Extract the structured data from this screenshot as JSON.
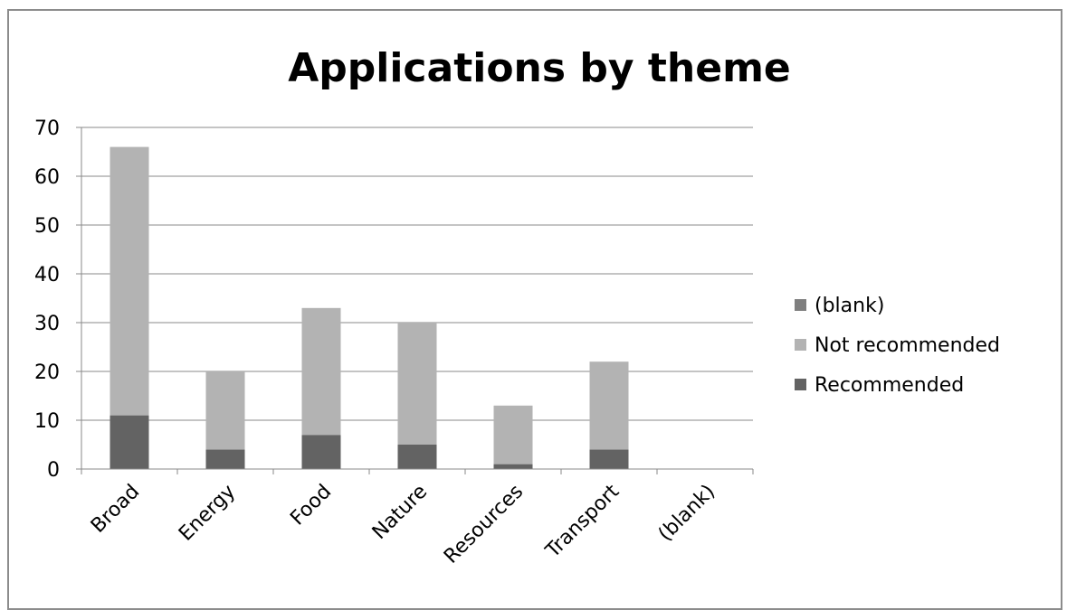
{
  "chart_data": {
    "type": "bar",
    "stacked": true,
    "title": "Applications by theme",
    "categories": [
      "Broad",
      "Energy",
      "Food",
      "Nature",
      "Resources",
      "Transport",
      "(blank)"
    ],
    "series": [
      {
        "name": "Recommended",
        "values": [
          11,
          4,
          7,
          5,
          1,
          4,
          0
        ],
        "color": "#636363"
      },
      {
        "name": "Not recommended",
        "values": [
          55,
          16,
          26,
          25,
          12,
          18,
          0
        ],
        "color": "#b3b3b3"
      },
      {
        "name": "(blank)",
        "values": [
          0,
          0,
          0,
          0,
          0,
          0,
          0
        ],
        "color": "#7f7f7f"
      }
    ],
    "legend_order": [
      "(blank)",
      "Not recommended",
      "Recommended"
    ],
    "ylim": [
      0,
      70
    ],
    "yticks": [
      0,
      10,
      20,
      30,
      40,
      50,
      60,
      70
    ],
    "grid": true,
    "legend_position": "right"
  }
}
